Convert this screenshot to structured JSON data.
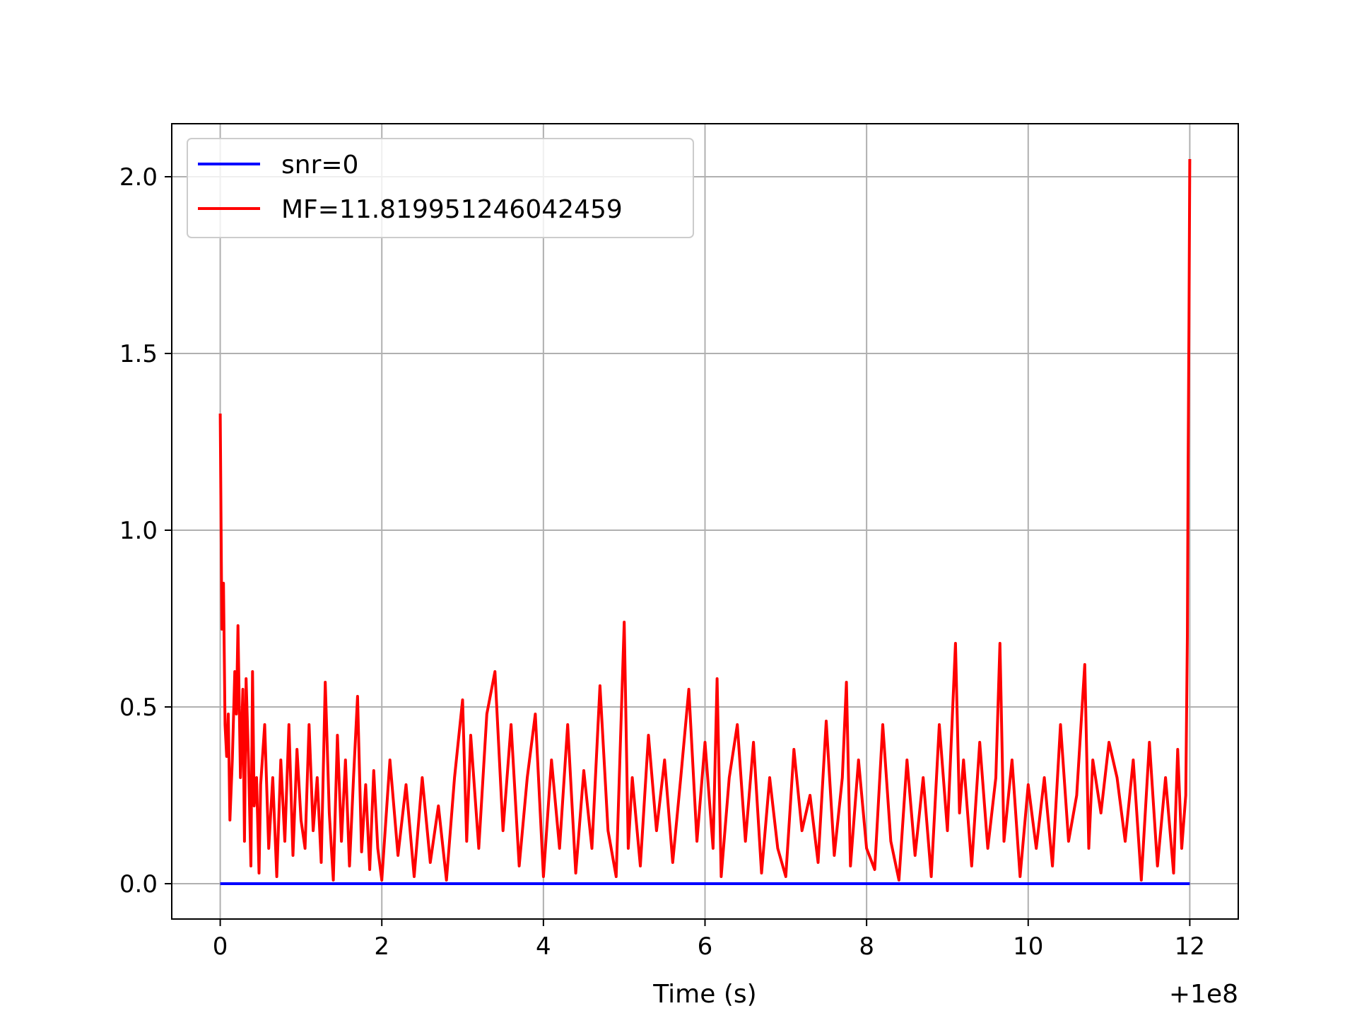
{
  "chart_data": {
    "type": "line",
    "title": "",
    "xlabel": "Time (s)",
    "ylabel": "",
    "x_offset_label": "+1e8",
    "xlim": [
      -0.6,
      12.6
    ],
    "ylim": [
      -0.1,
      2.15
    ],
    "xticks": [
      0,
      2,
      4,
      6,
      8,
      10,
      12
    ],
    "xtick_labels": [
      "0",
      "2",
      "4",
      "6",
      "8",
      "10",
      "12"
    ],
    "yticks": [
      0.0,
      0.5,
      1.0,
      1.5,
      2.0
    ],
    "ytick_labels": [
      "0.0",
      "0.5",
      "1.0",
      "1.5",
      "2.0"
    ],
    "grid": true,
    "legend_position": "upper left",
    "colors": {
      "snr": "#0000ff",
      "mf": "#ff0000",
      "grid": "#b0b0b0"
    },
    "series": [
      {
        "name": "snr=0",
        "color": "#0000ff",
        "x": [
          0,
          12
        ],
        "y": [
          0,
          0
        ]
      },
      {
        "name": "MF=11.819951246042459",
        "color": "#ff0000",
        "x": [
          0.0,
          0.02,
          0.04,
          0.06,
          0.08,
          0.1,
          0.12,
          0.15,
          0.18,
          0.2,
          0.22,
          0.25,
          0.28,
          0.3,
          0.32,
          0.35,
          0.38,
          0.4,
          0.42,
          0.45,
          0.48,
          0.5,
          0.55,
          0.6,
          0.65,
          0.7,
          0.75,
          0.8,
          0.85,
          0.9,
          0.95,
          1.0,
          1.05,
          1.1,
          1.15,
          1.2,
          1.25,
          1.3,
          1.35,
          1.4,
          1.45,
          1.5,
          1.55,
          1.6,
          1.65,
          1.7,
          1.75,
          1.8,
          1.85,
          1.9,
          1.95,
          2.0,
          2.1,
          2.2,
          2.3,
          2.4,
          2.5,
          2.6,
          2.7,
          2.8,
          2.9,
          3.0,
          3.05,
          3.1,
          3.2,
          3.3,
          3.4,
          3.5,
          3.6,
          3.7,
          3.8,
          3.9,
          4.0,
          4.1,
          4.2,
          4.3,
          4.4,
          4.5,
          4.6,
          4.7,
          4.8,
          4.9,
          5.0,
          5.05,
          5.1,
          5.2,
          5.3,
          5.4,
          5.5,
          5.6,
          5.7,
          5.8,
          5.9,
          6.0,
          6.1,
          6.15,
          6.2,
          6.3,
          6.4,
          6.5,
          6.6,
          6.7,
          6.8,
          6.9,
          7.0,
          7.1,
          7.2,
          7.3,
          7.4,
          7.5,
          7.6,
          7.7,
          7.75,
          7.8,
          7.9,
          8.0,
          8.1,
          8.2,
          8.3,
          8.4,
          8.5,
          8.6,
          8.7,
          8.8,
          8.9,
          9.0,
          9.1,
          9.15,
          9.2,
          9.3,
          9.4,
          9.5,
          9.6,
          9.65,
          9.7,
          9.8,
          9.9,
          10.0,
          10.1,
          10.2,
          10.3,
          10.4,
          10.5,
          10.6,
          10.7,
          10.75,
          10.8,
          10.9,
          11.0,
          11.1,
          11.2,
          11.3,
          11.4,
          11.5,
          11.6,
          11.7,
          11.8,
          11.85,
          11.9,
          11.95,
          11.97,
          11.98,
          11.99,
          12.0
        ],
        "y": [
          1.33,
          0.72,
          0.85,
          0.45,
          0.36,
          0.48,
          0.18,
          0.35,
          0.6,
          0.48,
          0.73,
          0.3,
          0.55,
          0.12,
          0.58,
          0.35,
          0.05,
          0.6,
          0.22,
          0.3,
          0.03,
          0.28,
          0.45,
          0.1,
          0.3,
          0.02,
          0.35,
          0.12,
          0.45,
          0.08,
          0.38,
          0.18,
          0.1,
          0.45,
          0.15,
          0.3,
          0.06,
          0.57,
          0.2,
          0.01,
          0.42,
          0.12,
          0.35,
          0.05,
          0.3,
          0.53,
          0.09,
          0.28,
          0.04,
          0.32,
          0.1,
          0.01,
          0.35,
          0.08,
          0.28,
          0.02,
          0.3,
          0.06,
          0.22,
          0.01,
          0.3,
          0.52,
          0.12,
          0.42,
          0.1,
          0.48,
          0.6,
          0.15,
          0.45,
          0.05,
          0.3,
          0.48,
          0.02,
          0.35,
          0.1,
          0.45,
          0.03,
          0.32,
          0.1,
          0.56,
          0.15,
          0.02,
          0.74,
          0.1,
          0.3,
          0.05,
          0.42,
          0.15,
          0.35,
          0.06,
          0.3,
          0.55,
          0.12,
          0.4,
          0.1,
          0.58,
          0.02,
          0.3,
          0.45,
          0.12,
          0.4,
          0.03,
          0.3,
          0.1,
          0.02,
          0.38,
          0.15,
          0.25,
          0.06,
          0.46,
          0.08,
          0.3,
          0.57,
          0.05,
          0.35,
          0.1,
          0.04,
          0.45,
          0.12,
          0.01,
          0.35,
          0.08,
          0.3,
          0.02,
          0.45,
          0.15,
          0.68,
          0.2,
          0.35,
          0.05,
          0.4,
          0.1,
          0.3,
          0.68,
          0.12,
          0.35,
          0.02,
          0.28,
          0.1,
          0.3,
          0.05,
          0.45,
          0.12,
          0.25,
          0.62,
          0.1,
          0.35,
          0.2,
          0.4,
          0.3,
          0.12,
          0.35,
          0.01,
          0.4,
          0.05,
          0.3,
          0.03,
          0.38,
          0.1,
          0.25,
          0.7,
          1.2,
          1.6,
          2.05
        ]
      }
    ]
  }
}
